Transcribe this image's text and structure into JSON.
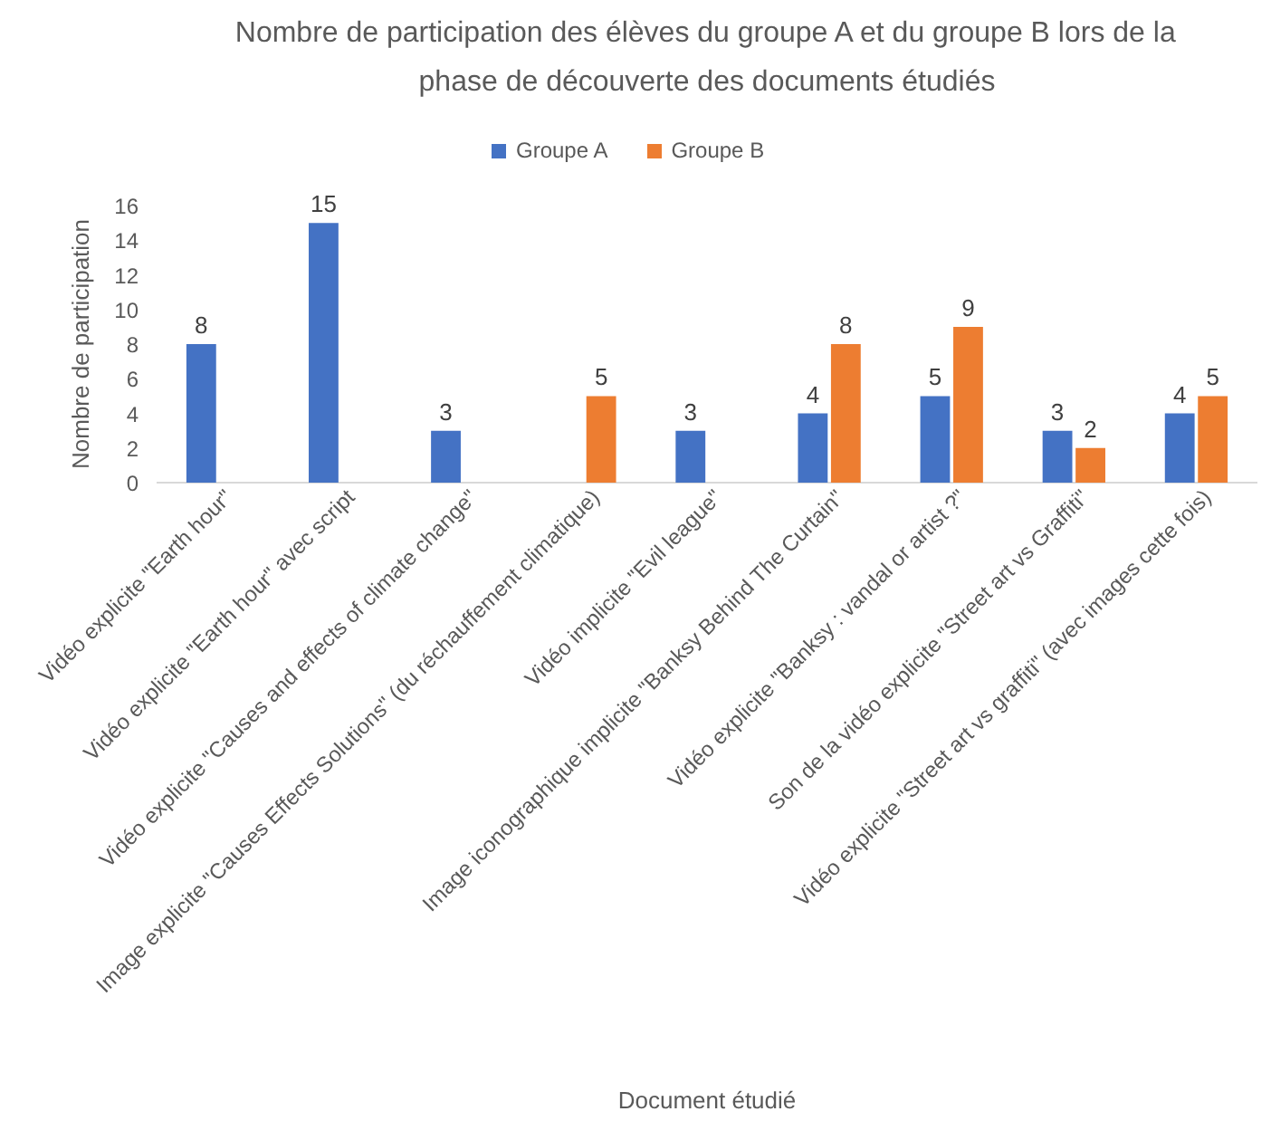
{
  "chart_data": {
    "type": "bar",
    "title": "Nombre de participation des élèves du groupe A et du groupe B lors de la\nphase de découverte des documents étudiés",
    "xlabel": "Document étudié",
    "ylabel": "Nombre de participation",
    "categories": [
      "Vidéo explicite \"Earth hour\"",
      "Vidéo explicite \"Earth hour\" avec script",
      "Vidéo explicite \"Causes and effects of climate change\"",
      "Image explicite \"Causes Effects Solutions\" (du réchauffement climatique)",
      "Vidéo implicite \"Evil league\"",
      "Image iconographique implicite \"Banksy Behind The Curtain\"",
      "Vidéo explicite \"Banksy : vandal or artist ?\"",
      "Son de la vidéo explicite \"Street art vs Graffiti\"",
      "Vidéo explicite \"Street art vs graffiti\" (avec images cette fois)"
    ],
    "series": [
      {
        "name": "Groupe A",
        "color": "#4472c4",
        "values": [
          8,
          15,
          3,
          null,
          3,
          4,
          5,
          3,
          4
        ]
      },
      {
        "name": "Groupe B",
        "color": "#ed7d31",
        "values": [
          null,
          null,
          null,
          5,
          null,
          8,
          9,
          2,
          5
        ]
      }
    ],
    "ylim": [
      0,
      16
    ],
    "yticks": [
      0,
      2,
      4,
      6,
      8,
      10,
      12,
      14,
      16
    ],
    "grid": false,
    "legend": "top",
    "data_labels": true
  }
}
